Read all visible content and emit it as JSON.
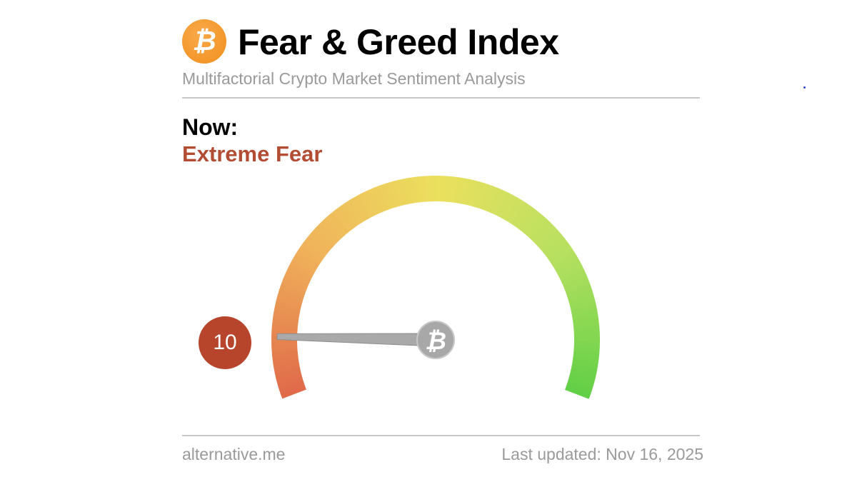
{
  "header": {
    "logo_icon": "bitcoin-icon",
    "logo_glyph": "₿",
    "title": "Fear & Greed Index",
    "subtitle": "Multifactorial Crypto Market Sentiment Analysis"
  },
  "current": {
    "now_label": "Now:",
    "status": "Extreme Fear",
    "value": "10",
    "status_color": "#b24d33"
  },
  "gauge": {
    "min": 0,
    "max": 100,
    "value": 10,
    "colors": [
      "#e06a4a",
      "#f0b25a",
      "#ebe05e",
      "#b6e060",
      "#5fcf45"
    ],
    "hub_glyph": "₿"
  },
  "footer": {
    "source": "alternative.me",
    "updated": "Last updated: Nov 16, 2025"
  }
}
